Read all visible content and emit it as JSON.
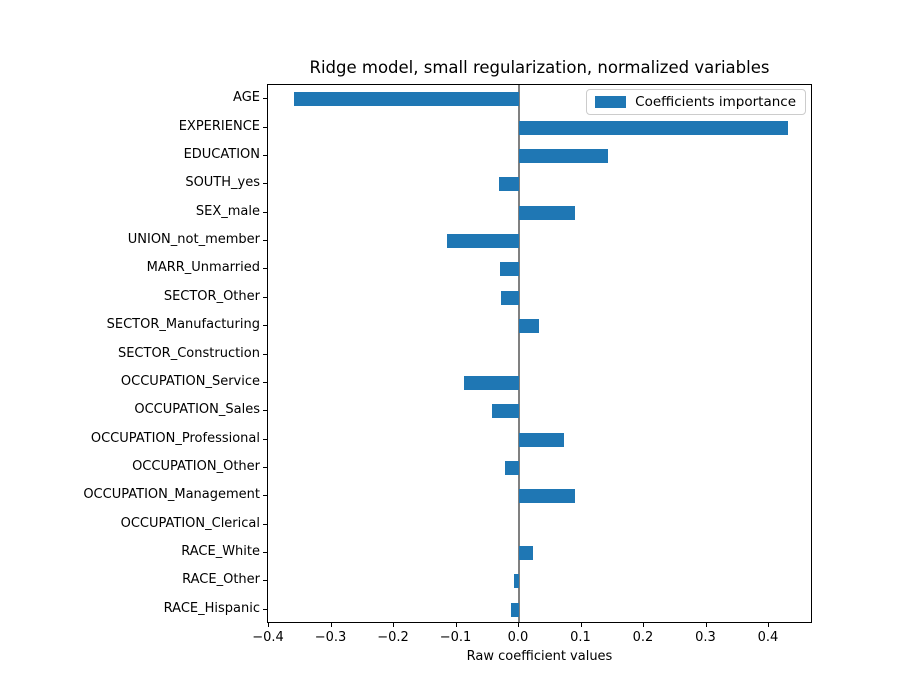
{
  "chart_data": {
    "type": "bar",
    "orientation": "horizontal",
    "title": "Ridge model, small regularization, normalized variables",
    "xlabel": "Raw coefficient values",
    "ylabel": "",
    "legend": {
      "label": "Coefficients importance",
      "position": "upper right"
    },
    "categories": [
      "AGE",
      "EXPERIENCE",
      "EDUCATION",
      "SOUTH_yes",
      "SEX_male",
      "UNION_not_member",
      "MARR_Unmarried",
      "SECTOR_Other",
      "SECTOR_Manufacturing",
      "SECTOR_Construction",
      "OCCUPATION_Service",
      "OCCUPATION_Sales",
      "OCCUPATION_Professional",
      "OCCUPATION_Other",
      "OCCUPATION_Management",
      "OCCUPATION_Clerical",
      "RACE_White",
      "RACE_Other",
      "RACE_Hispanic"
    ],
    "values": [
      -0.36,
      0.431,
      0.143,
      -0.032,
      0.09,
      -0.115,
      -0.031,
      -0.029,
      0.032,
      0.0,
      -0.088,
      -0.043,
      0.072,
      -0.022,
      0.09,
      0.0,
      0.022,
      -0.008,
      -0.013
    ],
    "xlim": [
      -0.402,
      0.47
    ],
    "xticks": [
      -0.4,
      -0.3,
      -0.2,
      -0.1,
      0.0,
      0.1,
      0.2,
      0.3,
      0.4
    ],
    "xtick_labels": [
      "−0.4",
      "−0.3",
      "−0.2",
      "−0.1",
      "0.0",
      "0.1",
      "0.2",
      "0.3",
      "0.4"
    ],
    "grid": false,
    "colors": {
      "bar": "#1f77b4",
      "zero_line": "#808080",
      "spine": "#000000",
      "text": "#000000"
    }
  }
}
